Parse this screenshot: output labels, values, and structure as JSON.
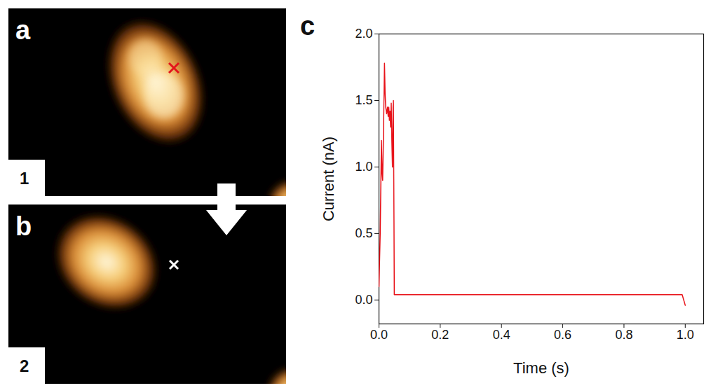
{
  "images": [
    {
      "letter": "a",
      "index": "1"
    },
    {
      "letter": "b",
      "index": "2"
    }
  ],
  "chart_panel": "c",
  "chart_data": {
    "type": "line",
    "x_label": "Time (s)",
    "y_label": "Current (nA)",
    "color": "#e8141b",
    "x": [
      0.0,
      0.004,
      0.008,
      0.01,
      0.012,
      0.015,
      0.018,
      0.02,
      0.022,
      0.025,
      0.028,
      0.03,
      0.032,
      0.034,
      0.036,
      0.038,
      0.04,
      0.042,
      0.044,
      0.046,
      0.047,
      0.049,
      0.05,
      0.1,
      0.2,
      0.4,
      0.6,
      0.8,
      0.99,
      0.995,
      1.0
    ],
    "values": [
      0.1,
      0.5,
      1.2,
      0.95,
      0.9,
      1.3,
      1.78,
      1.55,
      1.45,
      1.4,
      1.45,
      1.38,
      1.45,
      1.35,
      1.42,
      1.3,
      1.48,
      1.2,
      1.0,
      1.45,
      1.5,
      0.6,
      0.04,
      0.04,
      0.04,
      0.04,
      0.04,
      0.04,
      0.04,
      0.0,
      -0.04
    ],
    "xlim": [
      0,
      1.06
    ],
    "ylim": [
      -0.18,
      2.0
    ],
    "xticks": [
      {
        "value": 0,
        "label": "0.0"
      },
      {
        "value": 0.2,
        "label": "0.2"
      },
      {
        "value": 0.4,
        "label": "0.4"
      },
      {
        "value": 0.6,
        "label": "0.6"
      },
      {
        "value": 0.8,
        "label": "0.8"
      },
      {
        "value": 1,
        "label": "1.0"
      }
    ],
    "yticks": [
      {
        "value": 0,
        "label": "0.0"
      },
      {
        "value": 0.5,
        "label": "0.5"
      },
      {
        "value": 1,
        "label": "1.0"
      },
      {
        "value": 1.5,
        "label": "1.5"
      },
      {
        "value": 2,
        "label": "2.0"
      }
    ],
    "grid": false
  }
}
